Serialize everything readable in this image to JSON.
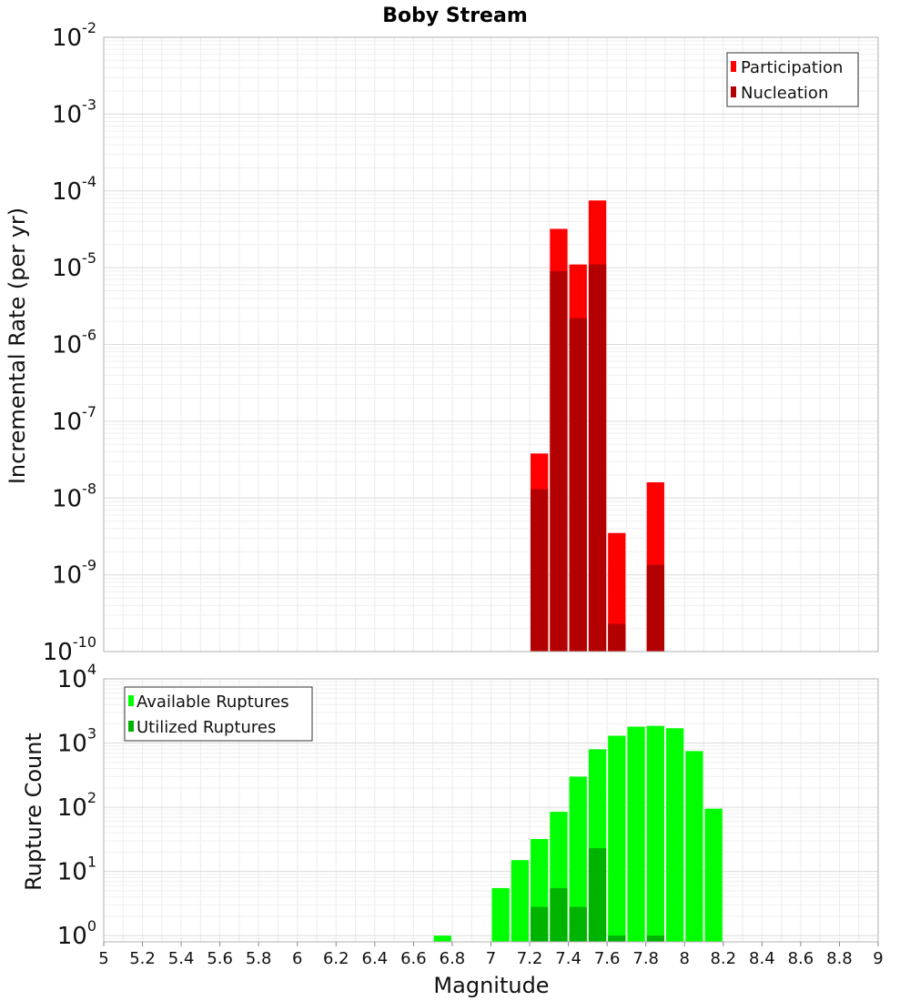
{
  "chart_data": [
    {
      "type": "bar",
      "title": "Boby Stream",
      "xlabel": "",
      "ylabel": "Incremental Rate (per yr)",
      "yscale": "log",
      "ylim": [
        1e-10,
        0.01
      ],
      "xlim": [
        5,
        9
      ],
      "bar_width": 0.1,
      "legend_position": "top-right",
      "ytick_labels": [
        {
          "base": "10",
          "exp": "-10"
        },
        {
          "base": "10",
          "exp": "-9"
        },
        {
          "base": "10",
          "exp": "-8"
        },
        {
          "base": "10",
          "exp": "-7"
        },
        {
          "base": "10",
          "exp": "-6"
        },
        {
          "base": "10",
          "exp": "-5"
        },
        {
          "base": "10",
          "exp": "-4"
        },
        {
          "base": "10",
          "exp": "-3"
        },
        {
          "base": "10",
          "exp": "-2"
        }
      ],
      "series": [
        {
          "name": "Participation",
          "color": "#ff0000",
          "x": [
            7.25,
            7.35,
            7.45,
            7.55,
            7.65,
            7.85
          ],
          "values": [
            3.8e-08,
            3.2e-05,
            1.1e-05,
            7.5e-05,
            3.5e-09,
            1.6e-08
          ]
        },
        {
          "name": "Nucleation",
          "color": "#b30000",
          "x": [
            7.25,
            7.35,
            7.45,
            7.55,
            7.65,
            7.85
          ],
          "values": [
            1.3e-08,
            9e-06,
            2.2e-06,
            1.1e-05,
            2.3e-10,
            1.35e-09
          ]
        }
      ]
    },
    {
      "type": "bar",
      "title": "",
      "xlabel": "Magnitude",
      "ylabel": "Rupture Count",
      "yscale": "log",
      "ylim": [
        0.8,
        10000
      ],
      "xlim": [
        5,
        9
      ],
      "bar_width": 0.1,
      "legend_position": "top-left",
      "xtick_labels": [
        "5",
        "5.2",
        "5.4",
        "5.6",
        "5.8",
        "6",
        "6.2",
        "6.4",
        "6.6",
        "6.8",
        "7",
        "7.2",
        "7.4",
        "7.6",
        "7.8",
        "8",
        "8.2",
        "8.4",
        "8.6",
        "8.8",
        "9"
      ],
      "ytick_labels": [
        {
          "base": "10",
          "exp": "0"
        },
        {
          "base": "10",
          "exp": "1"
        },
        {
          "base": "10",
          "exp": "2"
        },
        {
          "base": "10",
          "exp": "3"
        },
        {
          "base": "10",
          "exp": "4"
        }
      ],
      "series": [
        {
          "name": "Available Ruptures",
          "color": "#00ff00",
          "x": [
            6.75,
            7.05,
            7.15,
            7.25,
            7.35,
            7.45,
            7.55,
            7.65,
            7.75,
            7.85,
            7.95,
            8.05,
            8.15
          ],
          "values": [
            1,
            5.5,
            15,
            32,
            85,
            300,
            800,
            1300,
            1800,
            1850,
            1700,
            750,
            95
          ]
        },
        {
          "name": "Utilized Ruptures",
          "color": "#00b300",
          "x": [
            7.25,
            7.35,
            7.45,
            7.55,
            7.65,
            7.85
          ],
          "values": [
            2.8,
            5.5,
            2.8,
            23,
            1,
            1
          ]
        }
      ]
    }
  ]
}
